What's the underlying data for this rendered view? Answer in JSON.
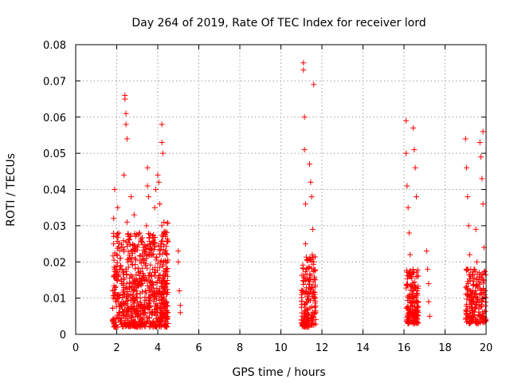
{
  "chart_data": {
    "type": "scatter",
    "title": "Day 264 of 2019, Rate Of TEC Index for receiver lord",
    "xlabel": "GPS time / hours",
    "ylabel": "ROTI / TECUs",
    "xlim": [
      0,
      20
    ],
    "ylim": [
      0,
      0.08
    ],
    "xticks": [
      0,
      2,
      4,
      6,
      8,
      10,
      12,
      14,
      16,
      18,
      20
    ],
    "xtick_labels": [
      "0",
      "2",
      "4",
      "6",
      "8",
      "10",
      "12",
      "14",
      "16",
      "18",
      "20"
    ],
    "yticks": [
      0,
      0.01,
      0.02,
      0.03,
      0.04,
      0.05,
      0.06,
      0.07,
      0.08
    ],
    "ytick_labels": [
      "0",
      "0.01",
      "0.02",
      "0.03",
      "0.04",
      "0.05",
      "0.06",
      "0.07",
      "0.08"
    ],
    "grid": true,
    "marker": "+",
    "color": "#ff0000",
    "series": [
      {
        "name": "ROTI",
        "points": [
          [
            1.8,
            0.004
          ],
          [
            1.8,
            0.012
          ],
          [
            1.85,
            0.025
          ],
          [
            1.85,
            0.032
          ],
          [
            1.9,
            0.04
          ],
          [
            1.9,
            0.018
          ],
          [
            1.95,
            0.009
          ],
          [
            2.0,
            0.015
          ],
          [
            2.0,
            0.022
          ],
          [
            2.05,
            0.035
          ],
          [
            2.1,
            0.028
          ],
          [
            2.1,
            0.011
          ],
          [
            2.15,
            0.006
          ],
          [
            2.2,
            0.019
          ],
          [
            2.2,
            0.008
          ],
          [
            2.25,
            0.014
          ],
          [
            2.3,
            0.024
          ],
          [
            2.35,
            0.044
          ],
          [
            2.4,
            0.066
          ],
          [
            2.4,
            0.065
          ],
          [
            2.45,
            0.061
          ],
          [
            2.45,
            0.058
          ],
          [
            2.5,
            0.054
          ],
          [
            2.5,
            0.031
          ],
          [
            2.55,
            0.02
          ],
          [
            2.6,
            0.013
          ],
          [
            2.6,
            0.007
          ],
          [
            2.65,
            0.027
          ],
          [
            2.7,
            0.038
          ],
          [
            2.75,
            0.016
          ],
          [
            2.8,
            0.009
          ],
          [
            2.85,
            0.033
          ],
          [
            2.9,
            0.021
          ],
          [
            2.95,
            0.012
          ],
          [
            3.0,
            0.005
          ],
          [
            3.05,
            0.017
          ],
          [
            3.1,
            0.028
          ],
          [
            3.15,
            0.01
          ],
          [
            3.2,
            0.003
          ],
          [
            3.25,
            0.014
          ],
          [
            3.3,
            0.024
          ],
          [
            3.35,
            0.008
          ],
          [
            3.4,
            0.019
          ],
          [
            3.45,
            0.03
          ],
          [
            3.5,
            0.046
          ],
          [
            3.5,
            0.041
          ],
          [
            3.55,
            0.038
          ],
          [
            3.6,
            0.022
          ],
          [
            3.65,
            0.011
          ],
          [
            3.7,
            0.006
          ],
          [
            3.75,
            0.018
          ],
          [
            3.8,
            0.026
          ],
          [
            3.85,
            0.035
          ],
          [
            3.9,
            0.04
          ],
          [
            3.95,
            0.012
          ],
          [
            4.0,
            0.044
          ],
          [
            4.05,
            0.042
          ],
          [
            4.1,
            0.036
          ],
          [
            4.15,
            0.025
          ],
          [
            4.2,
            0.058
          ],
          [
            4.2,
            0.053
          ],
          [
            4.25,
            0.05
          ],
          [
            4.3,
            0.031
          ],
          [
            4.35,
            0.016
          ],
          [
            4.4,
            0.009
          ],
          [
            4.45,
            0.006
          ],
          [
            5.0,
            0.023
          ],
          [
            5.0,
            0.02
          ],
          [
            5.05,
            0.012
          ],
          [
            5.1,
            0.008
          ],
          [
            5.1,
            0.006
          ],
          [
            11.0,
            0.004
          ],
          [
            11.05,
            0.012
          ],
          [
            11.1,
            0.075
          ],
          [
            11.1,
            0.073
          ],
          [
            11.15,
            0.06
          ],
          [
            11.15,
            0.051
          ],
          [
            11.2,
            0.036
          ],
          [
            11.2,
            0.025
          ],
          [
            11.25,
            0.018
          ],
          [
            11.3,
            0.009
          ],
          [
            11.35,
            0.015
          ],
          [
            11.4,
            0.047
          ],
          [
            11.45,
            0.042
          ],
          [
            11.5,
            0.038
          ],
          [
            11.55,
            0.029
          ],
          [
            11.6,
            0.069
          ],
          [
            11.6,
            0.02
          ],
          [
            11.65,
            0.011
          ],
          [
            11.7,
            0.006
          ],
          [
            16.1,
            0.059
          ],
          [
            16.1,
            0.05
          ],
          [
            16.15,
            0.041
          ],
          [
            16.2,
            0.035
          ],
          [
            16.25,
            0.028
          ],
          [
            16.3,
            0.022
          ],
          [
            16.35,
            0.016
          ],
          [
            16.4,
            0.01
          ],
          [
            16.45,
            0.057
          ],
          [
            16.5,
            0.051
          ],
          [
            16.55,
            0.046
          ],
          [
            16.6,
            0.038
          ],
          [
            16.65,
            0.012
          ],
          [
            16.7,
            0.006
          ],
          [
            17.1,
            0.023
          ],
          [
            17.15,
            0.018
          ],
          [
            17.2,
            0.014
          ],
          [
            17.2,
            0.009
          ],
          [
            17.25,
            0.005
          ],
          [
            19.0,
            0.054
          ],
          [
            19.05,
            0.046
          ],
          [
            19.1,
            0.038
          ],
          [
            19.15,
            0.03
          ],
          [
            19.2,
            0.022
          ],
          [
            19.25,
            0.016
          ],
          [
            19.3,
            0.01
          ],
          [
            19.35,
            0.006
          ],
          [
            19.4,
            0.004
          ],
          [
            19.5,
            0.029
          ],
          [
            19.55,
            0.02
          ],
          [
            19.6,
            0.013
          ],
          [
            19.65,
            0.008
          ],
          [
            19.7,
            0.053
          ],
          [
            19.75,
            0.049
          ],
          [
            19.8,
            0.043
          ],
          [
            19.85,
            0.056
          ],
          [
            19.85,
            0.036
          ],
          [
            19.9,
            0.024
          ],
          [
            19.95,
            0.012
          ]
        ],
        "clusters": [
          {
            "x_range": [
              1.8,
              4.5
            ],
            "y_range": [
              0.002,
              0.028
            ],
            "count": 700,
            "seed": 11
          },
          {
            "x_range": [
              4.1,
              4.5
            ],
            "y_range": [
              0.004,
              0.032
            ],
            "count": 60,
            "seed": 12
          },
          {
            "x_range": [
              11.0,
              11.7
            ],
            "y_range": [
              0.002,
              0.022
            ],
            "count": 180,
            "seed": 21
          },
          {
            "x_range": [
              16.1,
              16.7
            ],
            "y_range": [
              0.003,
              0.018
            ],
            "count": 170,
            "seed": 31
          },
          {
            "x_range": [
              19.0,
              20.0
            ],
            "y_range": [
              0.003,
              0.018
            ],
            "count": 200,
            "seed": 41
          }
        ]
      }
    ]
  }
}
